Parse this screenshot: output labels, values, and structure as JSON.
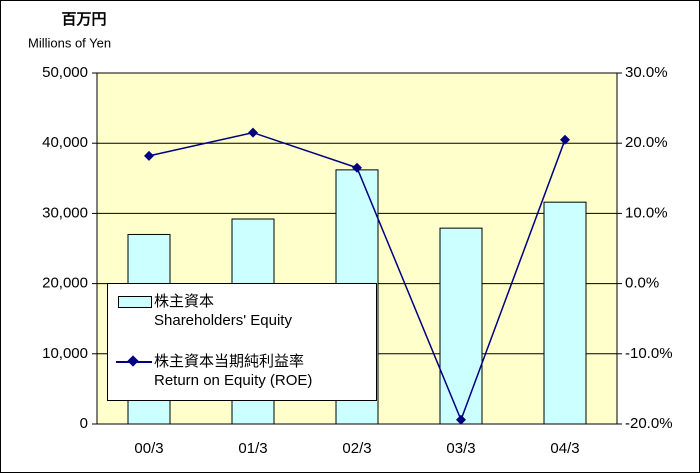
{
  "chart_data": {
    "type": "bar-line",
    "y_unit_label": "百万円",
    "y_unit_label_en": "Millions of Yen",
    "categories": [
      "00/3",
      "01/3",
      "02/3",
      "03/3",
      "04/3"
    ],
    "series": [
      {
        "name": "株主資本\nShareholders' Equity",
        "type": "bar",
        "color": "#ccffff",
        "values": [
          27000,
          29200,
          36200,
          27900,
          31600
        ]
      },
      {
        "name": "株主資本当期純利益率\nReturn on Equity (ROE)",
        "type": "line",
        "axis": "y2",
        "color": "#000080",
        "values": [
          18.2,
          21.5,
          16.5,
          -19.4,
          20.5
        ]
      }
    ],
    "ylim": [
      0,
      50000
    ],
    "yticks": [
      0,
      {
        "value": 10000,
        "label": "10,000"
      },
      {
        "value": 20000,
        "label": "20,000"
      },
      {
        "value": 30000,
        "label": "30,000"
      },
      {
        "value": 40000,
        "label": "40,000"
      },
      {
        "value": 50000,
        "label": "50,000"
      }
    ],
    "y2lim": [
      -20,
      30
    ],
    "y2ticks": [
      {
        "value": -20,
        "label": "-20.0%"
      },
      {
        "value": -10,
        "label": "-10.0%"
      },
      {
        "value": 0,
        "label": "0.0%"
      },
      {
        "value": 10,
        "label": "10.0%"
      },
      {
        "value": 20,
        "label": "20.0%"
      },
      {
        "value": 30,
        "label": "30.0%"
      }
    ],
    "grid": true,
    "plot_background": "#ffffcc"
  }
}
